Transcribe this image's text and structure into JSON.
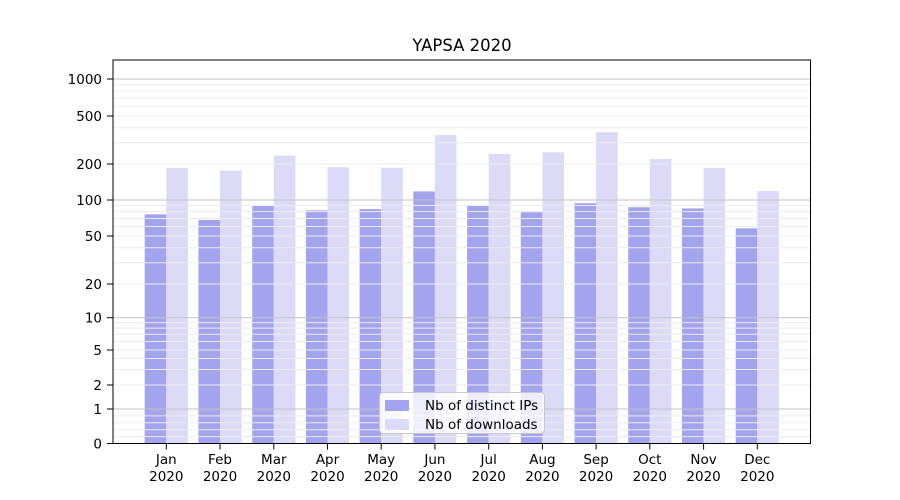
{
  "chart_data": {
    "type": "bar",
    "title": "YAPSA 2020",
    "categories": [
      "Jan 2020",
      "Feb 2020",
      "Mar 2020",
      "Apr 2020",
      "May 2020",
      "Jun 2020",
      "Jul 2020",
      "Aug 2020",
      "Sep 2020",
      "Oct 2020",
      "Nov 2020",
      "Dec 2020"
    ],
    "series": [
      {
        "name": "Nb of distinct IPs",
        "color": "#a4a4ee",
        "values": [
          76,
          68,
          90,
          82,
          84,
          118,
          90,
          79,
          94,
          87,
          85,
          58
        ]
      },
      {
        "name": "Nb of downloads",
        "color": "#dbdbf7",
        "values": [
          185,
          176,
          235,
          188,
          186,
          348,
          243,
          250,
          368,
          220,
          185,
          119
        ]
      }
    ],
    "xlabel": "",
    "ylabel": "",
    "yscale": "symlog",
    "yticks": [
      0,
      1,
      2,
      5,
      10,
      20,
      50,
      100,
      200,
      500,
      1000
    ],
    "ylim": [
      0,
      1480
    ],
    "grid": true,
    "legend_position": "lower center",
    "colors": {
      "axis": "#000000",
      "grid_decade": "#c3c3c3",
      "grid_minor": "#ececec",
      "background": "#ffffff"
    }
  }
}
